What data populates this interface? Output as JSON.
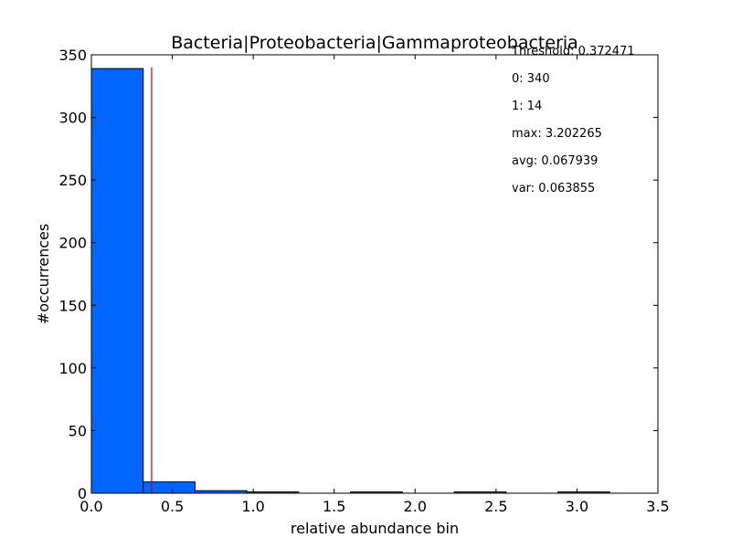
{
  "chart_data": {
    "type": "bar",
    "title": "Bacteria|Proteobacteria|Gammaproteobacteria",
    "xlabel": "relative abundance bin",
    "ylabel": "#occurrences",
    "xlim": [
      0,
      3.5
    ],
    "ylim": [
      0,
      350
    ],
    "x_ticks": [
      0,
      0.5,
      1,
      1.5,
      2,
      2.5,
      3,
      3.5
    ],
    "x_tick_labels": [
      "0.0",
      "0.5",
      "1.0",
      "1.5",
      "2.0",
      "2.5",
      "3.0",
      "3.5"
    ],
    "y_ticks": [
      0,
      50,
      100,
      150,
      200,
      250,
      300,
      350
    ],
    "y_tick_labels": [
      "0",
      "50",
      "100",
      "150",
      "200",
      "250",
      "300",
      "350"
    ],
    "bins": [
      {
        "start": 0.0,
        "end": 0.3202,
        "count": 339
      },
      {
        "start": 0.3202,
        "end": 0.6405,
        "count": 9
      },
      {
        "start": 0.6405,
        "end": 0.9607,
        "count": 2
      },
      {
        "start": 0.9607,
        "end": 1.2809,
        "count": 1
      },
      {
        "start": 1.2809,
        "end": 1.6011,
        "count": 0
      },
      {
        "start": 1.6011,
        "end": 1.9214,
        "count": 1
      },
      {
        "start": 1.9214,
        "end": 2.2416,
        "count": 0
      },
      {
        "start": 2.2416,
        "end": 2.5618,
        "count": 1
      },
      {
        "start": 2.5618,
        "end": 2.882,
        "count": 0
      },
      {
        "start": 2.882,
        "end": 3.2023,
        "count": 1
      }
    ],
    "bar_color": "#0066ff",
    "threshold": {
      "x": 0.372471,
      "y_top": 340,
      "color": "#cc0000"
    },
    "annotations": [
      "Threshold: 0.372471",
      "0: 340",
      "1: 14",
      "max: 3.202265",
      "avg: 0.067939",
      "var: 0.063855"
    ],
    "grid": false
  }
}
